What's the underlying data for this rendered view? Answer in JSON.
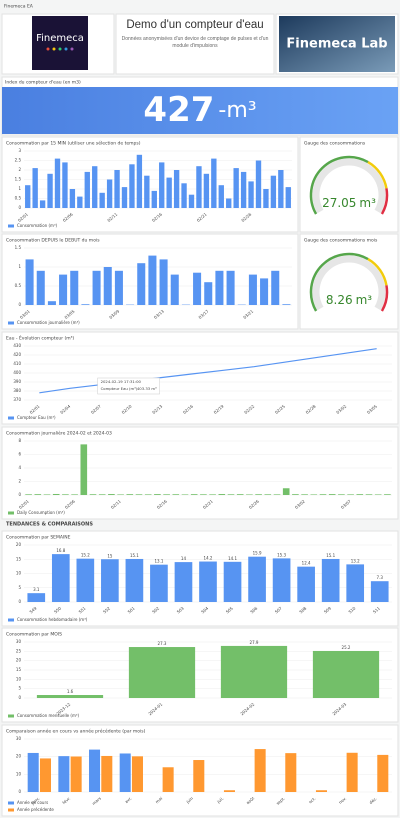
{
  "header": {
    "title": "Finemeca EA"
  },
  "logo": {
    "text": "Finemeca"
  },
  "banner": {
    "title": "Demo d'un compteur d'eau",
    "subtitle": "Données anonymisées d'un device de comptage de pulses et d'un module d'impulsions"
  },
  "lab_image": {
    "text": "Finemeca Lab"
  },
  "index_panel": {
    "title": "Index du compteur d'eau (en m3)",
    "value": 427,
    "unit": "-m³"
  },
  "gauges": [
    {
      "title": "Gauge des consommations",
      "value": 27.05,
      "unit": "m³"
    },
    {
      "title": "Gauge des consommations mois",
      "value": 8.26,
      "unit": "m³"
    }
  ],
  "section": {
    "title": "TENDANCES & COMPARAISONS"
  },
  "chart_data": [
    {
      "type": "bar",
      "title": "Consommation par 15 MIN (utiliser une sélection de temps)",
      "categories": [
        "02/01",
        null,
        null,
        null,
        null,
        null,
        "02/06",
        null,
        null,
        null,
        null,
        null,
        "02/11",
        null,
        null,
        null,
        null,
        null,
        "02/16",
        null,
        null,
        null,
        null,
        null,
        "02/21",
        null,
        null,
        null,
        null,
        null,
        "02/26",
        null,
        null,
        null,
        null,
        null
      ],
      "series": [
        {
          "name": "Consommation (m³)",
          "color": "#5794f2",
          "values": [
            1.2,
            2.1,
            0.4,
            1.8,
            2.6,
            2.4,
            1.0,
            0.6,
            1.9,
            2.2,
            0.8,
            1.5,
            2.0,
            1.1,
            2.3,
            2.8,
            1.7,
            0.9,
            2.4,
            1.6,
            2.0,
            1.3,
            0.7,
            2.2,
            1.8,
            2.6,
            1.2,
            0.5,
            2.1,
            1.9,
            1.4,
            2.5,
            1.0,
            1.7,
            2.0,
            1.1
          ]
        }
      ],
      "ylim": [
        0,
        3
      ],
      "yticks": [
        0,
        0.5,
        1,
        1.5,
        2,
        2.5,
        3
      ],
      "grid": true,
      "show_values": false
    },
    {
      "type": "bar",
      "title": "Consommation DEPUIS le DEBUT du mois",
      "categories": [
        "03/01",
        null,
        null,
        null,
        "03/05",
        null,
        null,
        null,
        "03/09",
        null,
        null,
        null,
        "03/13",
        null,
        null,
        null,
        "03/17",
        null,
        null,
        null,
        "03/21",
        null,
        null,
        null
      ],
      "series": [
        {
          "name": "Consommation journalière (m³)",
          "color": "#5794f2",
          "values": [
            1.2,
            0.9,
            0.1,
            0.8,
            0.9,
            0.02,
            0.9,
            1.0,
            0.9,
            0.01,
            1.1,
            1.3,
            1.2,
            0.8,
            0.01,
            0.85,
            0.6,
            0.9,
            0.9,
            0.01,
            0.8,
            0.7,
            0.9,
            0.02
          ]
        }
      ],
      "ylim": [
        0,
        1.5
      ],
      "yticks": [
        0,
        0.5,
        1,
        1.5
      ],
      "grid": true,
      "show_values": false
    },
    {
      "type": "line",
      "title": "Eau - Évolution compteur (m³)",
      "categories": [
        "02/01",
        "02/04",
        "02/07",
        "02/10",
        "02/13",
        "02/16",
        "02/19",
        "02/22",
        "02/25",
        "02/28",
        "03/02",
        "03/05"
      ],
      "series": [
        {
          "name": "Compteur Eau (m³)",
          "color": "#5794f2",
          "values": [
            378,
            383,
            387,
            391,
            395,
            399,
            403,
            407,
            412,
            417,
            422,
            427
          ]
        }
      ],
      "ylim": [
        370,
        430
      ],
      "yticks": [
        370,
        380,
        390,
        400,
        410,
        420,
        430
      ],
      "grid": true,
      "tooltip": {
        "time": "2024-02-19 17:31:00",
        "label": "Compteur Eau (m³)",
        "value": "403.33 m³"
      }
    },
    {
      "type": "bar",
      "title": "Consommation journalière 2024-02 et 2024-03",
      "categories": [
        "02/01",
        null,
        null,
        null,
        null,
        "02/06",
        null,
        null,
        null,
        null,
        "02/11",
        null,
        null,
        null,
        null,
        "02/16",
        null,
        null,
        null,
        null,
        "02/21",
        null,
        null,
        null,
        null,
        "02/26",
        null,
        null,
        null,
        null,
        "03/02",
        null,
        null,
        null,
        null,
        "03/07",
        null,
        null,
        null,
        null
      ],
      "series": [
        {
          "name": "Daily Consumption (m³)",
          "color": "#73bf69",
          "values": [
            0.1,
            0.12,
            0.08,
            0.15,
            0.1,
            0.09,
            7.5,
            0.11,
            0.1,
            0.14,
            0.08,
            0.12,
            0.1,
            0.09,
            0.13,
            0.1,
            0.11,
            0.08,
            0.12,
            0.1,
            0.09,
            0.14,
            0.1,
            0.12,
            0.08,
            0.11,
            0.1,
            0.09,
            1.0,
            0.12,
            0.1,
            0.08,
            0.11,
            0.13,
            0.1,
            0.09,
            0.12,
            0.1,
            0.08,
            0.11
          ]
        }
      ],
      "ylim": [
        0,
        8
      ],
      "yticks": [
        0,
        2,
        4,
        6,
        8
      ],
      "grid": true,
      "show_values": false
    },
    {
      "type": "bar",
      "title": "Consommation par SEMAINE",
      "categories": [
        "S49",
        "S50",
        "S51",
        "S52",
        "S01",
        "S02",
        "S03",
        "S04",
        "S05",
        "S06",
        "S07",
        "S08",
        "S09",
        "S10",
        "S11"
      ],
      "series": [
        {
          "name": "Consommation hebdomadaire (m³)",
          "color": "#5794f2",
          "values": [
            3.1,
            16.8,
            15.2,
            15.0,
            15.1,
            13.1,
            14.0,
            14.2,
            14.1,
            15.9,
            15.3,
            12.4,
            15.1,
            13.2,
            7.3
          ]
        }
      ],
      "ylim": [
        0,
        20
      ],
      "yticks": [
        0,
        5,
        10,
        15,
        20
      ],
      "grid": true,
      "show_values": true
    },
    {
      "type": "bar",
      "title": "Consommation par MOIS",
      "categories": [
        "2023-12",
        "2024-01",
        "2024-02",
        "2024-03"
      ],
      "series": [
        {
          "name": "Consommation mensuelle (m³)",
          "color": "#73bf69",
          "values": [
            1.6,
            27.3,
            27.9,
            25.2
          ]
        }
      ],
      "ylim": [
        0,
        30
      ],
      "yticks": [
        0,
        5,
        10,
        15,
        20,
        25,
        30
      ],
      "grid": true,
      "show_values": true
    },
    {
      "type": "bar",
      "title": "Comparaison année en cours vs année précédente (par mois)",
      "categories": [
        "janv.",
        "févr.",
        "mars",
        "avr.",
        "mai",
        "juin",
        "juil.",
        "août",
        "sept.",
        "oct.",
        "nov.",
        "déc."
      ],
      "series": [
        {
          "name": "Année en cours",
          "color": "#5794f2",
          "values": [
            22.1,
            20.3,
            24.0,
            21.8,
            null,
            null,
            null,
            null,
            null,
            null,
            null,
            null
          ]
        },
        {
          "name": "Année précédente",
          "color": "#ff9830",
          "values": [
            19.0,
            20.1,
            20.4,
            20.2,
            14.0,
            18.1,
            1.0,
            24.3,
            22.0,
            1.0,
            22.2,
            21.0
          ]
        }
      ],
      "ylim": [
        0,
        30
      ],
      "yticks": [
        0,
        10,
        20,
        30
      ],
      "grid": true,
      "show_values": false
    }
  ]
}
